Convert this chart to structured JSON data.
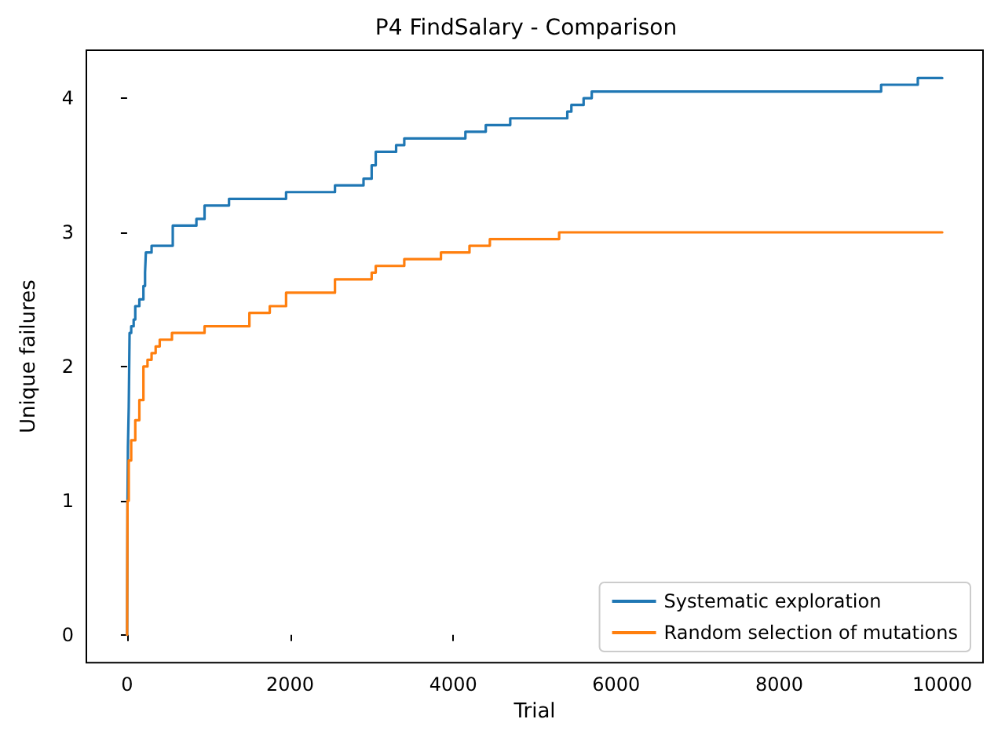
{
  "chart_data": {
    "type": "step",
    "title": "P4 FindSalary - Comparison",
    "xlabel": "Trial",
    "ylabel": "Unique failures",
    "xlim": [
      -500,
      10500
    ],
    "xticks": [
      0,
      2000,
      4000,
      6000,
      8000,
      10000
    ],
    "ylim": [
      -0.2075,
      4.3575
    ],
    "yticks": [
      0,
      1,
      2,
      3,
      4
    ],
    "grid": false,
    "legend": "bottom right",
    "marker": "none",
    "line_style": "solid",
    "series": [
      {
        "name": "Systematic exploration",
        "color": "#1f77b4",
        "x": [
          0,
          5,
          10,
          20,
          30,
          50,
          80,
          100,
          150,
          200,
          220,
          230,
          300,
          560,
          850,
          950,
          1250,
          1950,
          2550,
          2900,
          3000,
          3050,
          3300,
          3400,
          4150,
          4400,
          4700,
          5400,
          5450,
          5600,
          5700,
          9250,
          9700,
          10000
        ],
        "values": [
          0,
          1,
          1.4,
          1.7,
          2.25,
          2.3,
          2.35,
          2.45,
          2.5,
          2.6,
          2.7,
          2.85,
          2.9,
          3.05,
          3.1,
          3.2,
          3.25,
          3.3,
          3.35,
          3.4,
          3.5,
          3.6,
          3.65,
          3.7,
          3.75,
          3.8,
          3.85,
          3.9,
          3.95,
          4.0,
          4.05,
          4.1,
          4.15,
          4.15
        ]
      },
      {
        "name": "Random selection of mutations",
        "color": "#ff7f0e",
        "x": [
          0,
          5,
          20,
          50,
          100,
          150,
          200,
          250,
          300,
          350,
          400,
          550,
          950,
          1500,
          1750,
          1950,
          2550,
          3000,
          3050,
          3400,
          3850,
          4200,
          4450,
          5300,
          10000
        ],
        "values": [
          0,
          1,
          1.3,
          1.45,
          1.6,
          1.75,
          2.0,
          2.05,
          2.1,
          2.15,
          2.2,
          2.25,
          2.3,
          2.4,
          2.45,
          2.55,
          2.65,
          2.7,
          2.75,
          2.8,
          2.85,
          2.9,
          2.95,
          3.0,
          3.0
        ]
      }
    ]
  }
}
